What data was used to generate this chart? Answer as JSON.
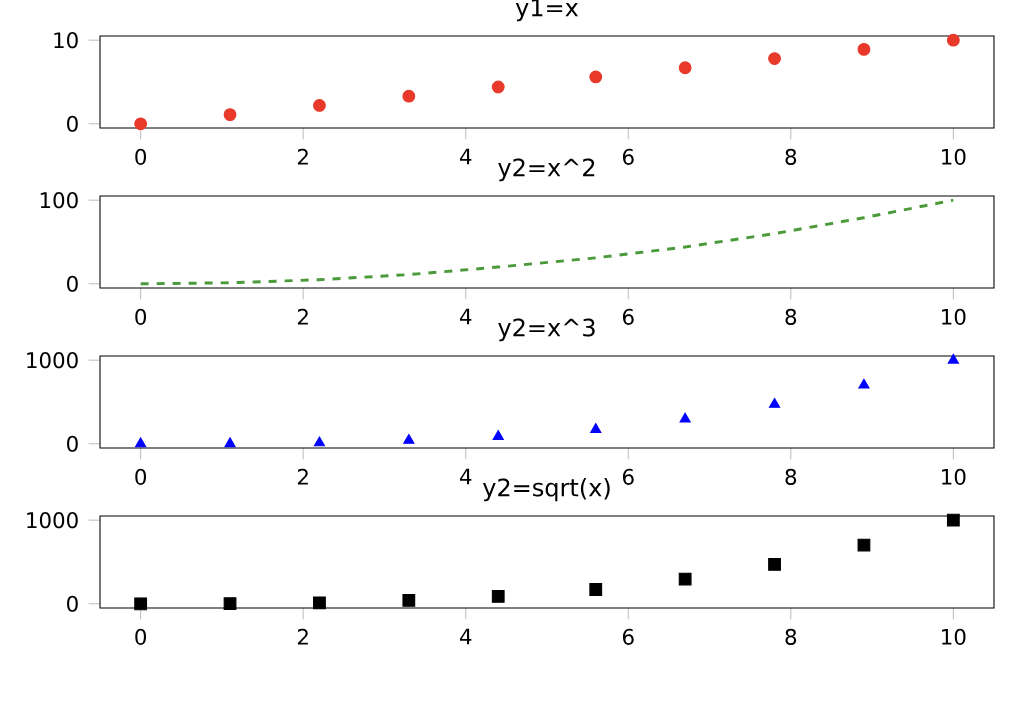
{
  "chart_data": [
    {
      "type": "scatter",
      "title": "y1=x",
      "x": [
        0,
        1.1,
        2.2,
        3.3,
        4.4,
        5.6,
        6.7,
        7.8,
        8.9,
        10
      ],
      "values": [
        0,
        1.1,
        2.2,
        3.3,
        4.4,
        5.6,
        6.7,
        7.8,
        8.9,
        10
      ],
      "color": "#e8392a",
      "marker": "circle",
      "xlim": [
        -0.5,
        10.5
      ],
      "xticks": [
        0,
        2,
        4,
        6,
        8,
        10
      ],
      "ylim": [
        -0.5,
        10.5
      ],
      "yticks": [
        0,
        10
      ]
    },
    {
      "type": "line",
      "title": "y2=x^2",
      "x": [
        0,
        1.1,
        2.2,
        3.3,
        4.4,
        5.6,
        6.7,
        7.8,
        8.9,
        10
      ],
      "values": [
        0,
        1.2,
        4.9,
        11,
        20,
        31,
        44,
        60,
        79,
        100
      ],
      "color": "#4b9a3a",
      "line_style": "dashed",
      "xlim": [
        -0.5,
        10.5
      ],
      "xticks": [
        0,
        2,
        4,
        6,
        8,
        10
      ],
      "ylim": [
        -5,
        105
      ],
      "yticks": [
        0,
        100
      ]
    },
    {
      "type": "scatter",
      "title": "y2=x^3",
      "x": [
        0,
        1.1,
        2.2,
        3.3,
        4.4,
        5.6,
        6.7,
        7.8,
        8.9,
        10
      ],
      "values": [
        0,
        1,
        11,
        41,
        88,
        171,
        296,
        471,
        702,
        1000
      ],
      "color": "#0000ff",
      "marker": "triangle",
      "xlim": [
        -0.5,
        10.5
      ],
      "xticks": [
        0,
        2,
        4,
        6,
        8,
        10
      ],
      "ylim": [
        -50,
        1050
      ],
      "yticks": [
        0,
        1000
      ]
    },
    {
      "type": "scatter",
      "title": "y2=sqrt(x)",
      "x": [
        0,
        1.1,
        2.2,
        3.3,
        4.4,
        5.6,
        6.7,
        7.8,
        8.9,
        10
      ],
      "values": [
        0,
        1,
        11,
        41,
        88,
        171,
        296,
        471,
        702,
        1000
      ],
      "color": "#000000",
      "marker": "square",
      "xlim": [
        -0.5,
        10.5
      ],
      "xticks": [
        0,
        2,
        4,
        6,
        8,
        10
      ],
      "ylim": [
        -50,
        1050
      ],
      "yticks": [
        0,
        1000
      ]
    }
  ]
}
